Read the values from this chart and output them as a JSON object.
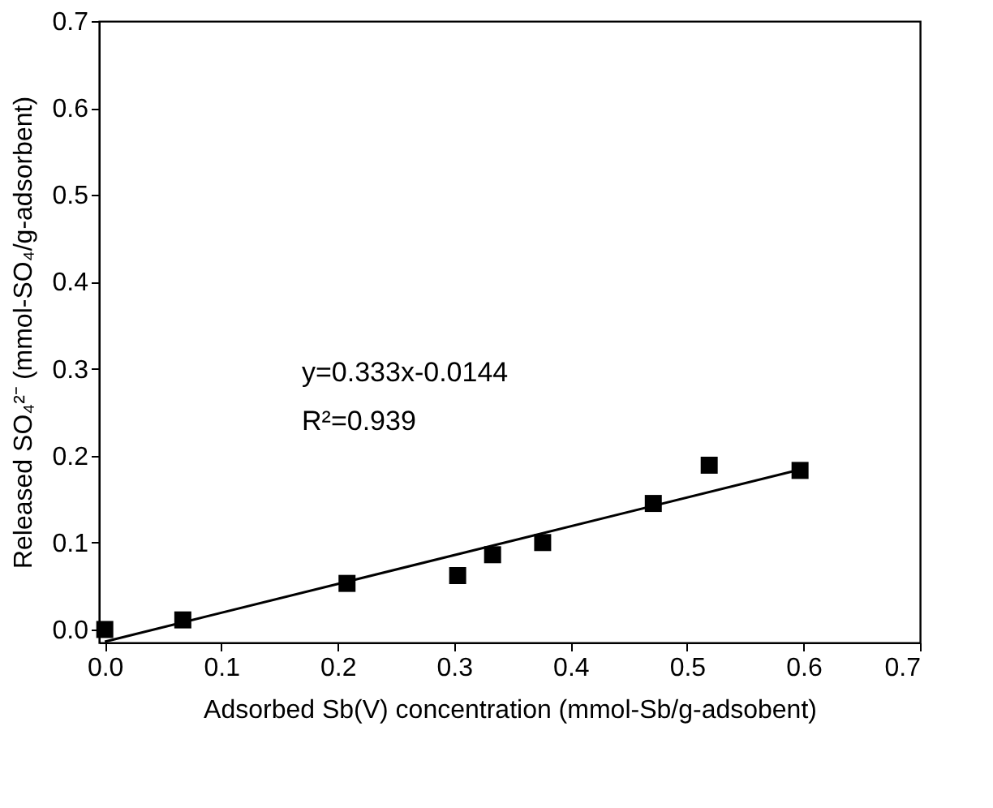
{
  "chart_data": {
    "type": "scatter",
    "xlabel": "Adsorbed Sb(V) concentration (mmol-Sb/g-adsobent)",
    "ylabel": "Released SO₄²⁻ (mmol-SO₄/g-adsorbent)",
    "x": [
      0.0,
      0.067,
      0.208,
      0.303,
      0.333,
      0.376,
      0.471,
      0.519,
      0.597
    ],
    "series": [
      {
        "color": "#000000",
        "marker": "square",
        "values": [
          0.0,
          0.011,
          0.053,
          0.062,
          0.086,
          0.1,
          0.145,
          0.189,
          0.183
        ]
      },
      {
        "type": "line",
        "color": "#000000",
        "line_style": "solid",
        "x": [
          0.0,
          0.6
        ],
        "values": [
          -0.014,
          0.185
        ]
      }
    ],
    "annotations": [
      "y=0.333x-0.0144",
      "R²=0.939"
    ],
    "xlim": [
      -0.005,
      0.7
    ],
    "ylim": [
      -0.015,
      0.7
    ],
    "xticks": [
      {
        "value": 0,
        "label": "0.0"
      },
      0.1,
      0.2,
      0.3,
      0.4,
      0.5,
      0.6,
      0.7
    ],
    "yticks": [
      {
        "value": 0,
        "label": "0.0"
      },
      0.1,
      0.2,
      0.3,
      0.4,
      0.5,
      0.6,
      0.7
    ],
    "grid": false
  }
}
